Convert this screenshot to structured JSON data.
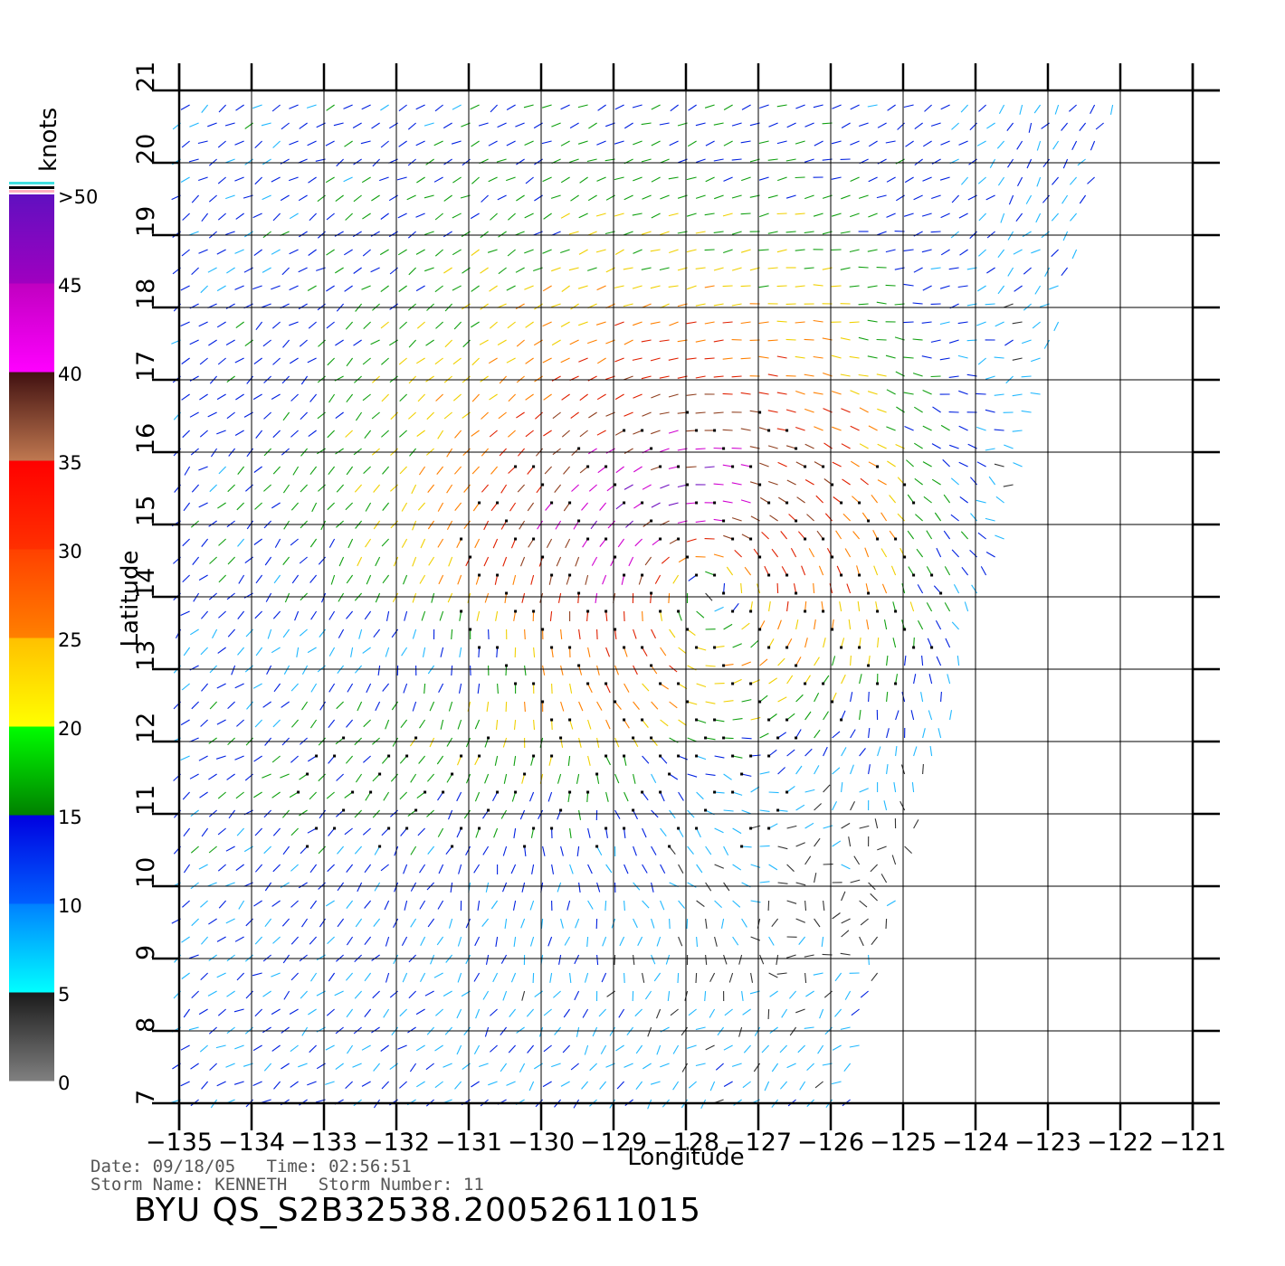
{
  "chart_data": {
    "type": "scatter",
    "subtype": "wind-vector-field",
    "xlabel": "Longitude",
    "ylabel": "Latitude",
    "x_ticks": [
      -135,
      -134,
      -133,
      -132,
      -131,
      -130,
      -129,
      -128,
      -127,
      -126,
      -125,
      -124,
      -123,
      -122,
      -121
    ],
    "y_ticks": [
      7,
      8,
      9,
      10,
      11,
      12,
      13,
      14,
      15,
      16,
      17,
      18,
      19,
      20,
      21
    ],
    "xlim": [
      -135,
      -121
    ],
    "ylim": [
      7,
      21
    ],
    "grid": true,
    "colorbar": {
      "title": "knots",
      "tick_labels": [
        "0",
        "5",
        "10",
        "15",
        "20",
        "25",
        "30",
        "35",
        "40",
        "45",
        ">50"
      ],
      "bands": [
        {
          "range": [
            0,
            5
          ],
          "colors": [
            "#808080",
            "#1a1a1a"
          ]
        },
        {
          "range": [
            5,
            10
          ],
          "colors": [
            "#00ffff",
            "#0080ff"
          ]
        },
        {
          "range": [
            10,
            15
          ],
          "colors": [
            "#0060ff",
            "#0000e0"
          ]
        },
        {
          "range": [
            15,
            20
          ],
          "colors": [
            "#008000",
            "#00ff00"
          ]
        },
        {
          "range": [
            20,
            25
          ],
          "colors": [
            "#ffff00",
            "#ffc000"
          ]
        },
        {
          "range": [
            25,
            30
          ],
          "colors": [
            "#ff8000",
            "#ff4000"
          ]
        },
        {
          "range": [
            30,
            35
          ],
          "colors": [
            "#ff3000",
            "#ff0000"
          ]
        },
        {
          "range": [
            35,
            40
          ],
          "colors": [
            "#c07850",
            "#401010"
          ]
        },
        {
          "range": [
            40,
            45
          ],
          "colors": [
            "#ff00ff",
            "#c000c0"
          ]
        },
        {
          "range": [
            45,
            50
          ],
          "colors": [
            "#a000c0",
            "#6010c0"
          ]
        }
      ]
    },
    "swath": {
      "west_lon": -135,
      "north_edge": [
        [
          -135,
          21
        ],
        [
          -122,
          21
        ]
      ],
      "east_edge": [
        [
          -122,
          21
        ],
        [
          -123.3,
          16
        ],
        [
          -123.5,
          15
        ],
        [
          -124,
          14
        ],
        [
          -124.2,
          13
        ],
        [
          -124.4,
          12
        ],
        [
          -124.8,
          11
        ],
        [
          -125,
          10
        ],
        [
          -125.4,
          8.5
        ],
        [
          -125.7,
          7
        ]
      ]
    },
    "vortex_center": {
      "lon": -127.8,
      "lat": 14.2
    }
  },
  "info": {
    "date_label": "Date:",
    "date": "09/18/05",
    "time_label": "Time:",
    "time": "02:56:51",
    "storm_name_label": "Storm Name:",
    "storm_name": "KENNETH",
    "storm_number_label": "Storm Number:",
    "storm_number": "11"
  },
  "title": "BYU QS_S2B32538.20052611015"
}
